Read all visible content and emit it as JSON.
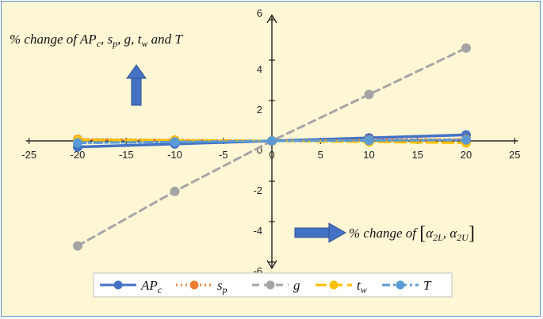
{
  "chart_data": {
    "type": "line",
    "x": [
      -20,
      -10,
      0,
      10,
      20
    ],
    "xlim": [
      -25,
      25
    ],
    "ylim": [
      -6,
      6
    ],
    "x_ticks": [
      "-25",
      "-20",
      "-15",
      "-10",
      "-5",
      "0",
      "5",
      "10",
      "15",
      "20",
      "25"
    ],
    "y_ticks": [
      "-6",
      "-4",
      "-2",
      "0",
      "2",
      "4",
      "6"
    ],
    "grid": false,
    "legend_position": "bottom",
    "annotations": {
      "y_arrow_label": "% change of AP_c, s_p, g, t_w and T",
      "x_arrow_label": "% change of [α_2L, α_2U]"
    },
    "series": [
      {
        "name": "AP_c",
        "values": [
          -0.3,
          -0.15,
          0,
          0.15,
          0.3
        ],
        "color": "#4472c4",
        "style": "solid"
      },
      {
        "name": "s_p",
        "values": [
          0.08,
          0.04,
          0,
          0.04,
          0.08
        ],
        "color": "#ed7d31",
        "style": "dotted"
      },
      {
        "name": "g",
        "values": [
          -5.2,
          -2.5,
          0,
          2.3,
          4.6
        ],
        "color": "#a5a5a5",
        "style": "dashed"
      },
      {
        "name": "t_w",
        "values": [
          0.05,
          0.03,
          0,
          -0.05,
          -0.1
        ],
        "color": "#ffc000",
        "style": "longdash"
      },
      {
        "name": "T",
        "values": [
          -0.1,
          -0.05,
          0,
          0.02,
          0.05
        ],
        "color": "#5b9bd5",
        "style": "dashdot"
      }
    ]
  },
  "colors": {
    "background": "#fdf7d6",
    "border": "#5b8fd6",
    "arrow": "#4472c4"
  },
  "icons": {
    "up": "up-arrow-icon",
    "right": "right-arrow-icon"
  }
}
